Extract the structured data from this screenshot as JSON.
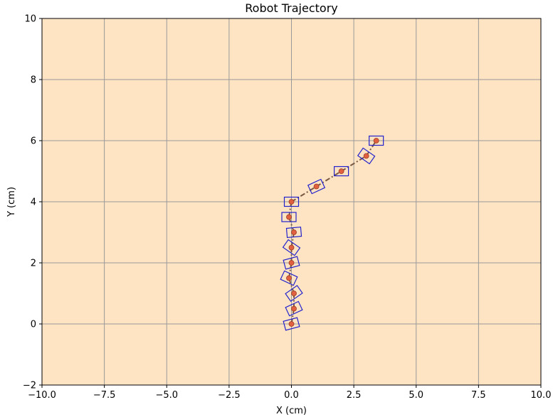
{
  "chart_data": {
    "type": "scatter",
    "title": "Robot Trajectory",
    "xlabel": "X (cm)",
    "ylabel": "Y (cm)",
    "xlim": [
      -10,
      10
    ],
    "ylim": [
      -2,
      10
    ],
    "x_ticks": [
      "−10.0",
      "−7.5",
      "−5.0",
      "−2.5",
      "0.0",
      "2.5",
      "5.0",
      "7.5",
      "10.0"
    ],
    "y_ticks": [
      "−2",
      "0",
      "2",
      "4",
      "6",
      "8",
      "10"
    ],
    "grid": true,
    "background_color": "#ffe4c4",
    "grid_color": "#999999",
    "path_color": "#7a5a44",
    "point_color": "#e06040",
    "box_color": "#2222cc",
    "points": [
      {
        "x": 0.0,
        "y": 0.0,
        "heading": 15
      },
      {
        "x": 0.1,
        "y": 0.5,
        "heading": 25
      },
      {
        "x": 0.1,
        "y": 1.0,
        "heading": 35
      },
      {
        "x": -0.1,
        "y": 1.5,
        "heading": -25
      },
      {
        "x": 0.0,
        "y": 2.0,
        "heading": 15
      },
      {
        "x": 0.0,
        "y": 2.5,
        "heading": -35
      },
      {
        "x": 0.1,
        "y": 3.0,
        "heading": 5
      },
      {
        "x": -0.1,
        "y": 3.5,
        "heading": 0
      },
      {
        "x": 0.0,
        "y": 4.0,
        "heading": 0
      },
      {
        "x": 1.0,
        "y": 4.5,
        "heading": 25
      },
      {
        "x": 2.0,
        "y": 5.0,
        "heading": 0
      },
      {
        "x": 3.0,
        "y": 5.5,
        "heading": -35
      },
      {
        "x": 3.4,
        "y": 6.0,
        "heading": 0
      }
    ]
  }
}
